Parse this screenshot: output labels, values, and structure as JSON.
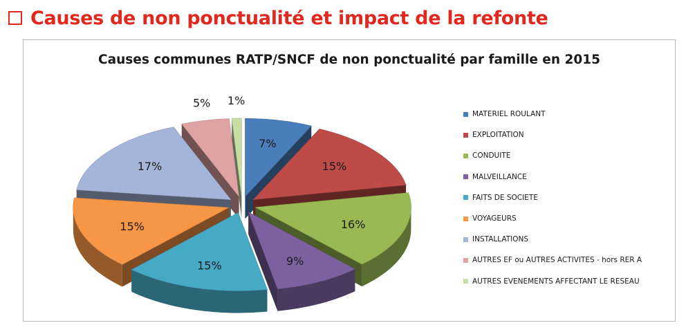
{
  "page": {
    "heading": "Causes de non ponctualité et impact de la refonte"
  },
  "chart_data": {
    "type": "pie",
    "title": "Causes communes RATP/SNCF de non ponctualité par famille en 2015",
    "categories": [
      "MATERIEL ROULANT",
      "EXPLOITATION",
      "CONDUITE",
      "MALVEILLANCE",
      "FAITS DE SOCIETE",
      "VOYAGEURS",
      "INSTALLATIONS",
      "AUTRES EF ou AUTRES ACTIVITES - hors RER A",
      "AUTRES EVENEMENTS AFFECTANT LE RESEAU"
    ],
    "values": [
      7,
      15,
      16,
      9,
      15,
      15,
      17,
      5,
      1
    ],
    "labels": [
      "7%",
      "15%",
      "16%",
      "9%",
      "15%",
      "15%",
      "17%",
      "5%",
      "1%"
    ],
    "colors": [
      "#4a7ebb",
      "#be4b48",
      "#98b954",
      "#7d60a0",
      "#46aac5",
      "#f79646",
      "#a5b5d9",
      "#e0a3a3",
      "#c6dda5"
    ],
    "exploded": true,
    "style": "3d",
    "legend_position": "right"
  }
}
